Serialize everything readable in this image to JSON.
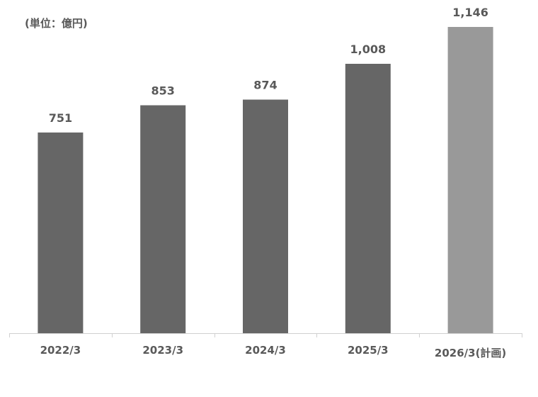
{
  "chart_data": {
    "type": "bar",
    "unit_label": "(単位：億円)",
    "categories": [
      "2022/3",
      "2023/3",
      "2024/3",
      "2025/3",
      "2026/3(計画)"
    ],
    "values": [
      751,
      853,
      874,
      1008,
      1146
    ],
    "value_labels": [
      "751",
      "853",
      "874",
      "1,008",
      "1,146"
    ],
    "bar_colors": [
      "#666666",
      "#666666",
      "#666666",
      "#666666",
      "#999999"
    ],
    "ylim": [
      0,
      1146
    ],
    "grid": false,
    "legend": "none"
  }
}
